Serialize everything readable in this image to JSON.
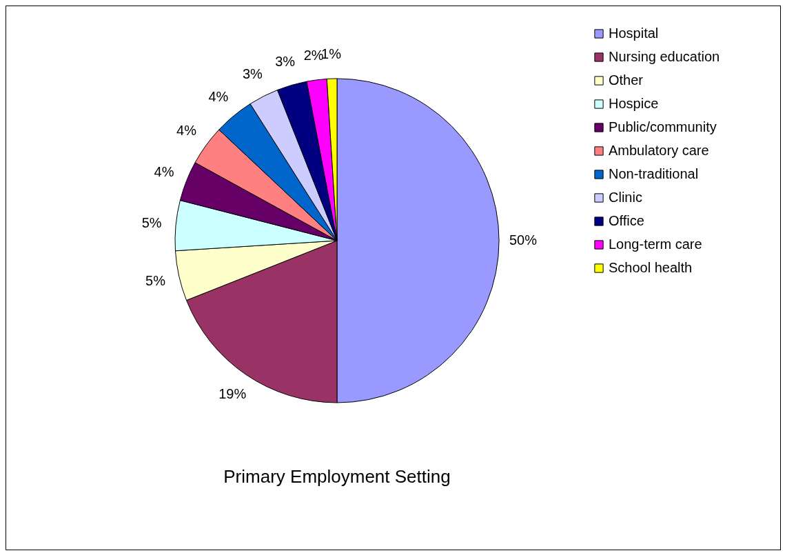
{
  "chart_data": {
    "type": "pie",
    "title": "Primary Employment Setting",
    "categories": [
      "Hospital",
      "Nursing education",
      "Other",
      "Hospice",
      "Public/community",
      "Ambulatory care",
      "Non-traditional",
      "Clinic",
      "Office",
      "Long-term care",
      "School health"
    ],
    "values": [
      50,
      19,
      5,
      5,
      4,
      4,
      4,
      3,
      3,
      2,
      1
    ],
    "value_labels": [
      "50%",
      "19%",
      "5%",
      "5%",
      "4%",
      "4%",
      "4%",
      "3%",
      "3%",
      "2%",
      "1%"
    ],
    "colors": [
      "#9999ff",
      "#993366",
      "#ffffcc",
      "#ccffff",
      "#660066",
      "#ff8080",
      "#0066cc",
      "#ccccff",
      "#000080",
      "#ff00ff",
      "#ffff00"
    ],
    "legend": "right"
  }
}
